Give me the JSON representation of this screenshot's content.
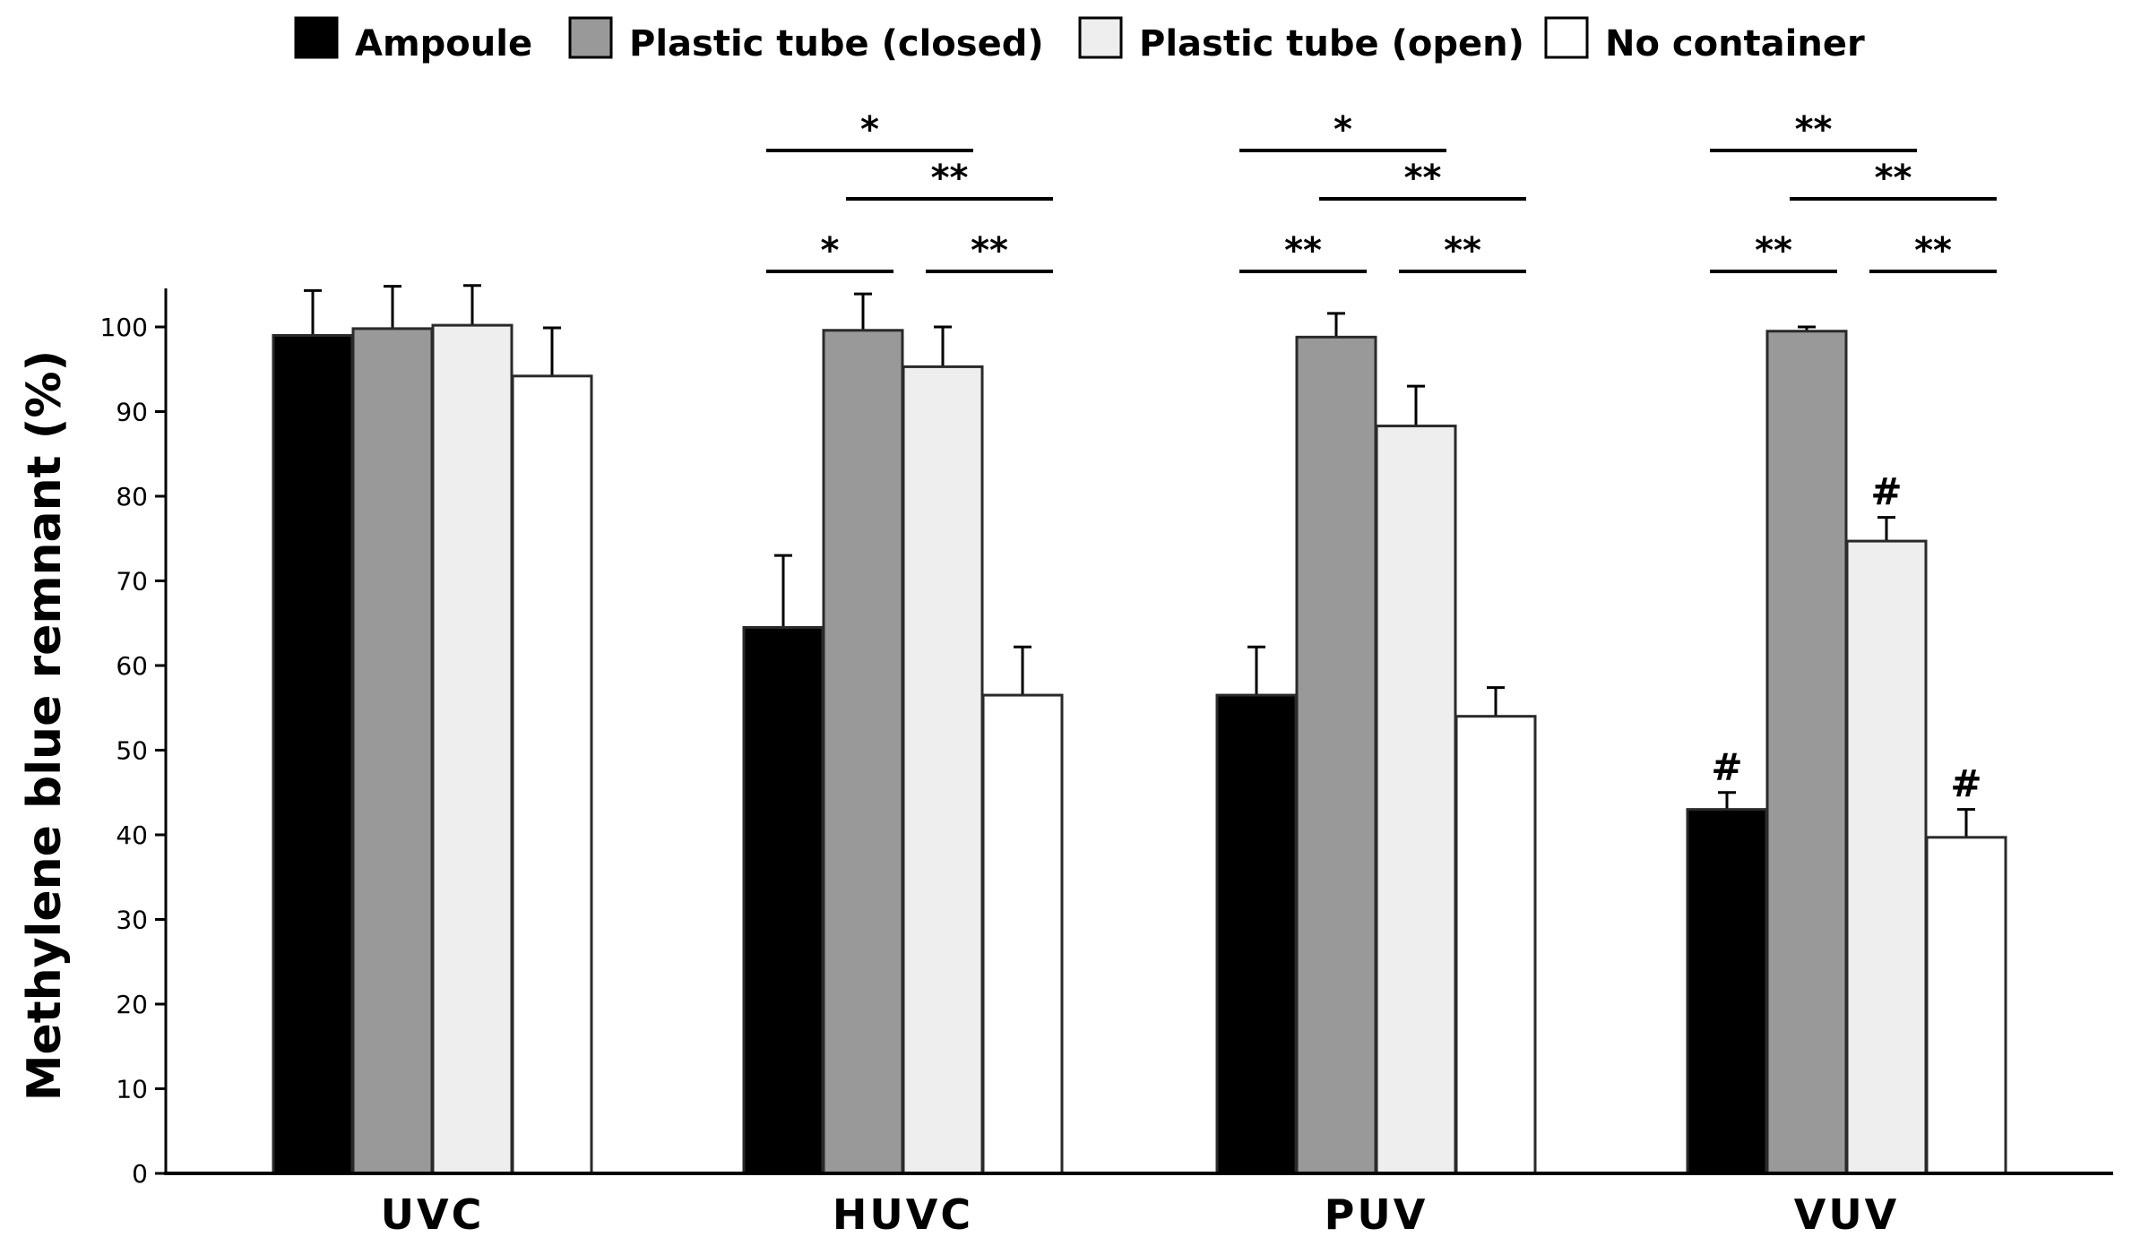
{
  "chart_data": {
    "type": "bar",
    "title": "",
    "xlabel": "",
    "ylabel": "Methylene blue remnant (%)",
    "ylim": [
      0,
      105
    ],
    "yticks": [
      0,
      10,
      20,
      30,
      40,
      50,
      60,
      70,
      80,
      90,
      100
    ],
    "legend_position": "top",
    "categories": [
      "UVC",
      "HUVC",
      "PUV",
      "VUV"
    ],
    "series": [
      {
        "name": "Ampoule",
        "color": "#000000",
        "values": [
          99.0,
          64.5,
          56.5,
          43.0
        ],
        "errors": [
          5.3,
          8.5,
          5.7,
          2.0
        ]
      },
      {
        "name": "Plastic tube (closed)",
        "color": "#999999",
        "values": [
          99.8,
          99.6,
          98.8,
          99.5
        ],
        "errors": [
          5.0,
          4.3,
          2.8,
          0.5
        ]
      },
      {
        "name": "Plastic tube (open)",
        "color": "#eeeeee",
        "values": [
          100.2,
          95.3,
          88.3,
          74.7
        ],
        "errors": [
          4.7,
          4.7,
          4.7,
          2.8
        ]
      },
      {
        "name": "No container",
        "color": "#ffffff",
        "values": [
          94.2,
          56.5,
          54.0,
          39.7
        ],
        "errors": [
          5.7,
          5.7,
          3.4,
          3.3
        ]
      }
    ],
    "significance": [
      {
        "category": "HUVC",
        "from": 0,
        "to": 1,
        "label": "*",
        "level": 0
      },
      {
        "category": "HUVC",
        "from": 2,
        "to": 3,
        "label": "**",
        "level": 0
      },
      {
        "category": "HUVC",
        "from": 1,
        "to": 3,
        "label": "**",
        "level": 1
      },
      {
        "category": "HUVC",
        "from": 0,
        "to": 2,
        "label": "*",
        "level": 2
      },
      {
        "category": "PUV",
        "from": 0,
        "to": 1,
        "label": "**",
        "level": 0
      },
      {
        "category": "PUV",
        "from": 2,
        "to": 3,
        "label": "**",
        "level": 0
      },
      {
        "category": "PUV",
        "from": 1,
        "to": 3,
        "label": "**",
        "level": 1
      },
      {
        "category": "PUV",
        "from": 0,
        "to": 2,
        "label": "*",
        "level": 2
      },
      {
        "category": "VUV",
        "from": 0,
        "to": 1,
        "label": "**",
        "level": 0
      },
      {
        "category": "VUV",
        "from": 2,
        "to": 3,
        "label": "**",
        "level": 0
      },
      {
        "category": "VUV",
        "from": 1,
        "to": 3,
        "label": "**",
        "level": 1
      },
      {
        "category": "VUV",
        "from": 0,
        "to": 2,
        "label": "**",
        "level": 2
      }
    ],
    "annotations": [
      {
        "category": "VUV",
        "series": 0,
        "label": "#"
      },
      {
        "category": "VUV",
        "series": 2,
        "label": "#"
      },
      {
        "category": "VUV",
        "series": 3,
        "label": "#"
      }
    ]
  }
}
